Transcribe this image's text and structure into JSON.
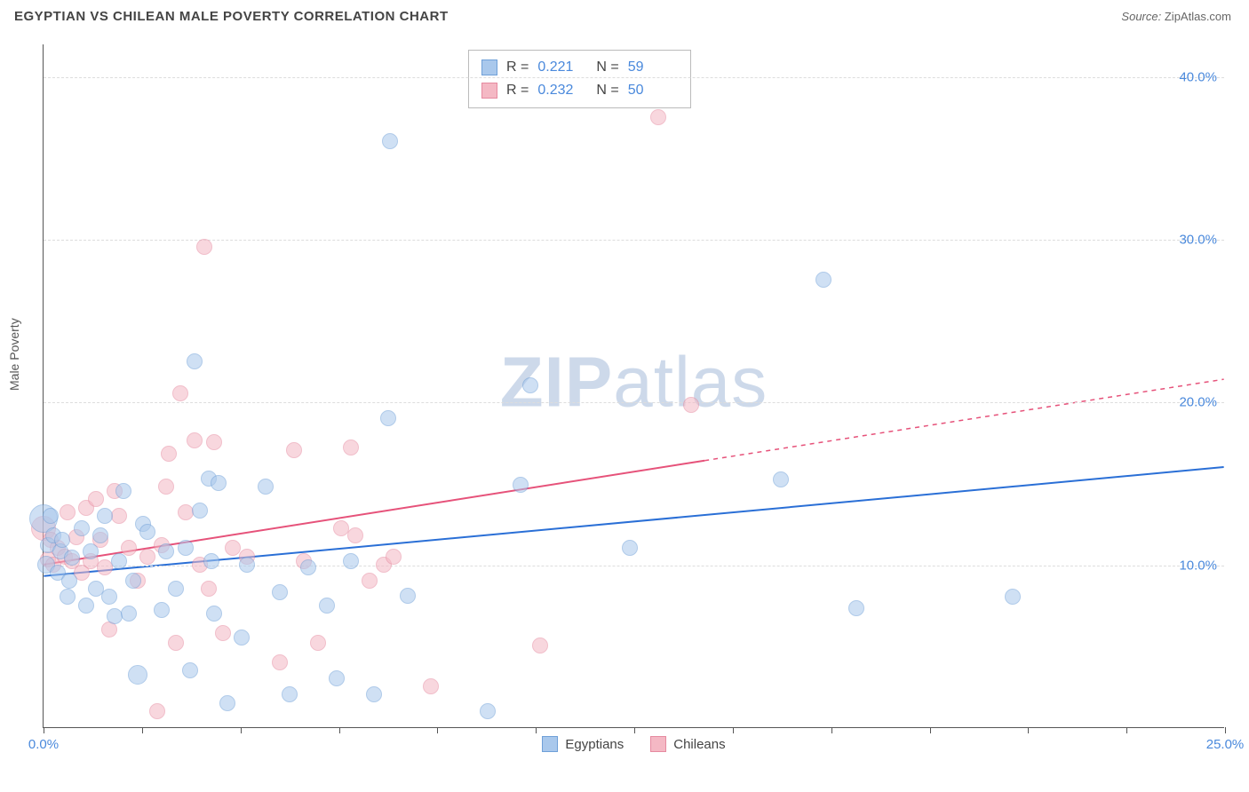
{
  "header": {
    "title": "EGYPTIAN VS CHILEAN MALE POVERTY CORRELATION CHART",
    "source_label": "Source:",
    "source_name": "ZipAtlas.com"
  },
  "ylabel": "Male Poverty",
  "watermark_bold": "ZIP",
  "watermark_light": "atlas",
  "chart": {
    "type": "scatter",
    "xlim": [
      0,
      25
    ],
    "ylim": [
      0,
      42
    ],
    "xticks_major": [
      0,
      25
    ],
    "xticks_minor": [
      2.083,
      4.167,
      6.25,
      8.333,
      10.417,
      12.5,
      14.583,
      16.667,
      18.75,
      20.833,
      22.917
    ],
    "xtick_labels": {
      "0": "0.0%",
      "25": "25.0%"
    },
    "yticks": [
      10,
      20,
      30,
      40
    ],
    "ytick_labels": {
      "10": "10.0%",
      "20": "20.0%",
      "30": "30.0%",
      "40": "40.0%"
    },
    "grid_color": "#dddddd",
    "background_color": "#ffffff",
    "axis_color": "#555555",
    "tick_label_color": "#4a89dc"
  },
  "series": {
    "egyptians": {
      "label": "Egyptians",
      "fill_color": "#a9c8ec",
      "stroke_color": "#6fa0d8",
      "fill_opacity": 0.55,
      "marker_radius": 9,
      "trend_color": "#2a6fd6",
      "trend_width": 2,
      "trend": {
        "x1": 0,
        "y1": 9.3,
        "x2": 25,
        "y2": 16.0
      },
      "stats": {
        "R": "0.221",
        "N": "59"
      },
      "points": [
        [
          0.0,
          12.8,
          16
        ],
        [
          0.05,
          10.0,
          10
        ],
        [
          0.1,
          11.2,
          9
        ],
        [
          0.15,
          13.0,
          9
        ],
        [
          0.2,
          11.8,
          9
        ],
        [
          0.3,
          9.5,
          9
        ],
        [
          0.35,
          10.8,
          9
        ],
        [
          0.4,
          11.5,
          9
        ],
        [
          0.5,
          8.0,
          9
        ],
        [
          0.55,
          9.0,
          9
        ],
        [
          0.6,
          10.4,
          9
        ],
        [
          0.8,
          12.2,
          9
        ],
        [
          0.9,
          7.5,
          9
        ],
        [
          1.0,
          10.8,
          9
        ],
        [
          1.1,
          8.5,
          9
        ],
        [
          1.2,
          11.8,
          9
        ],
        [
          1.3,
          13.0,
          9
        ],
        [
          1.4,
          8.0,
          9
        ],
        [
          1.5,
          6.8,
          9
        ],
        [
          1.6,
          10.2,
          9
        ],
        [
          1.7,
          14.5,
          9
        ],
        [
          1.8,
          7.0,
          9
        ],
        [
          1.9,
          9.0,
          9
        ],
        [
          2.0,
          3.2,
          11
        ],
        [
          2.1,
          12.5,
          9
        ],
        [
          2.2,
          12.0,
          9
        ],
        [
          2.5,
          7.2,
          9
        ],
        [
          2.6,
          10.8,
          9
        ],
        [
          2.8,
          8.5,
          9
        ],
        [
          3.0,
          11.0,
          9
        ],
        [
          3.1,
          3.5,
          9
        ],
        [
          3.2,
          22.5,
          9
        ],
        [
          3.3,
          13.3,
          9
        ],
        [
          3.5,
          15.3,
          9
        ],
        [
          3.55,
          10.2,
          9
        ],
        [
          3.6,
          7.0,
          9
        ],
        [
          3.7,
          15.0,
          9
        ],
        [
          3.9,
          1.5,
          9
        ],
        [
          4.2,
          5.5,
          9
        ],
        [
          4.3,
          10.0,
          9
        ],
        [
          4.7,
          14.8,
          9
        ],
        [
          5.0,
          8.3,
          9
        ],
        [
          5.2,
          2.0,
          9
        ],
        [
          5.6,
          9.8,
          9
        ],
        [
          6.0,
          7.5,
          9
        ],
        [
          6.2,
          3.0,
          9
        ],
        [
          6.5,
          10.2,
          9
        ],
        [
          7.0,
          2.0,
          9
        ],
        [
          7.3,
          19.0,
          9
        ],
        [
          7.33,
          36.0,
          9
        ],
        [
          7.7,
          8.1,
          9
        ],
        [
          9.4,
          1.0,
          9
        ],
        [
          10.1,
          14.9,
          9
        ],
        [
          10.3,
          21.0,
          9
        ],
        [
          12.4,
          11.0,
          9
        ],
        [
          15.6,
          15.2,
          9
        ],
        [
          16.5,
          27.5,
          9
        ],
        [
          17.2,
          7.3,
          9
        ],
        [
          20.5,
          8.0,
          9
        ]
      ]
    },
    "chileans": {
      "label": "Chileans",
      "fill_color": "#f4b8c4",
      "stroke_color": "#e68aa0",
      "fill_opacity": 0.55,
      "marker_radius": 9,
      "trend_color": "#e6527a",
      "trend_width": 2,
      "trend_solid": {
        "x1": 0,
        "y1": 10.0,
        "x2": 14.0,
        "y2": 16.4
      },
      "trend_dashed_to": {
        "x2": 25,
        "y2": 21.4
      },
      "stats": {
        "R": "0.232",
        "N": "50"
      },
      "points": [
        [
          0.0,
          12.2,
          14
        ],
        [
          0.1,
          10.3,
          9
        ],
        [
          0.15,
          11.5,
          9
        ],
        [
          0.2,
          10.0,
          9
        ],
        [
          0.3,
          11.0,
          9
        ],
        [
          0.45,
          10.5,
          9
        ],
        [
          0.5,
          13.2,
          9
        ],
        [
          0.6,
          10.2,
          9
        ],
        [
          0.7,
          11.7,
          9
        ],
        [
          0.8,
          9.5,
          9
        ],
        [
          0.9,
          13.5,
          9
        ],
        [
          1.0,
          10.2,
          9
        ],
        [
          1.1,
          14.0,
          9
        ],
        [
          1.2,
          11.5,
          9
        ],
        [
          1.3,
          9.8,
          9
        ],
        [
          1.4,
          6.0,
          9
        ],
        [
          1.5,
          14.5,
          9
        ],
        [
          1.6,
          13.0,
          9
        ],
        [
          1.8,
          11.0,
          9
        ],
        [
          2.0,
          9.0,
          9
        ],
        [
          2.2,
          10.5,
          9
        ],
        [
          2.4,
          1.0,
          9
        ],
        [
          2.5,
          11.2,
          9
        ],
        [
          2.6,
          14.8,
          9
        ],
        [
          2.65,
          16.8,
          9
        ],
        [
          2.8,
          5.2,
          9
        ],
        [
          2.9,
          20.5,
          9
        ],
        [
          3.0,
          13.2,
          9
        ],
        [
          3.2,
          17.6,
          9
        ],
        [
          3.3,
          10.0,
          9
        ],
        [
          3.4,
          29.5,
          9
        ],
        [
          3.5,
          8.5,
          9
        ],
        [
          3.6,
          17.5,
          9
        ],
        [
          3.8,
          5.8,
          9
        ],
        [
          4.0,
          11.0,
          9
        ],
        [
          4.3,
          10.5,
          9
        ],
        [
          5.0,
          4.0,
          9
        ],
        [
          5.3,
          17.0,
          9
        ],
        [
          5.5,
          10.2,
          9
        ],
        [
          5.8,
          5.2,
          9
        ],
        [
          6.3,
          12.2,
          9
        ],
        [
          6.5,
          17.2,
          9
        ],
        [
          6.6,
          11.8,
          9
        ],
        [
          6.9,
          9.0,
          9
        ],
        [
          7.2,
          10.0,
          9
        ],
        [
          7.4,
          10.5,
          9
        ],
        [
          8.2,
          2.5,
          9
        ],
        [
          10.5,
          5.0,
          9
        ],
        [
          13.0,
          37.5,
          9
        ],
        [
          13.7,
          19.8,
          9
        ]
      ]
    }
  },
  "stat_box_labels": {
    "R": "R  =",
    "N": "N  ="
  }
}
